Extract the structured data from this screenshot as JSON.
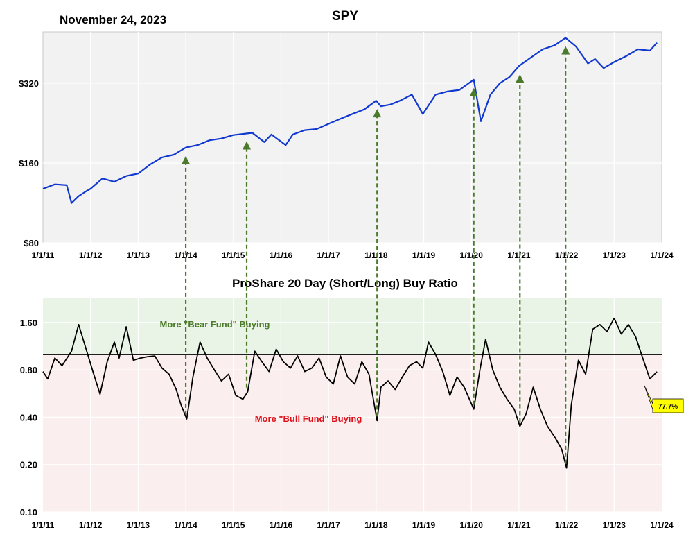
{
  "header": {
    "date": "November 24, 2023",
    "title": "SPY"
  },
  "colors": {
    "price_line": "#1038d0",
    "ratio_line": "#000000",
    "arrow": "#4a7a2a",
    "bear_zone": "#eaf4e6",
    "bull_zone": "#fbeeee",
    "price_bg": "#f2f2f2",
    "callout": "#ffff00"
  },
  "chart_data": [
    {
      "type": "line",
      "title": "SPY",
      "scale": "log",
      "ylim": [
        80,
        500
      ],
      "yticks": [
        80,
        160,
        320
      ],
      "ytick_labels": [
        "$80",
        "$160",
        "$320"
      ],
      "xticks": [
        "1/1/11",
        "1/1/12",
        "1/1/13",
        "1/1/14",
        "1/1/15",
        "1/1/16",
        "1/1/17",
        "1/1/18",
        "1/1/19",
        "1/1/20",
        "1/1/21",
        "1/1/22",
        "1/1/23",
        "1/1/24"
      ],
      "xlim": [
        2011.0,
        2024.0
      ],
      "grid": true,
      "series": [
        {
          "x": [
            2011.0,
            2011.25,
            2011.5,
            2011.6,
            2011.75,
            2011.9,
            2012.0,
            2012.25,
            2012.5,
            2012.75,
            2013.0,
            2013.25,
            2013.5,
            2013.75,
            2014.0,
            2014.25,
            2014.5,
            2014.75,
            2015.0,
            2015.4,
            2015.65,
            2015.8,
            2016.1,
            2016.25,
            2016.5,
            2016.75,
            2017.0,
            2017.25,
            2017.5,
            2017.75,
            2018.0,
            2018.1,
            2018.3,
            2018.5,
            2018.75,
            2018.98,
            2019.25,
            2019.5,
            2019.75,
            2020.05,
            2020.2,
            2020.4,
            2020.6,
            2020.8,
            2021.0,
            2021.25,
            2021.5,
            2021.75,
            2021.98,
            2022.2,
            2022.45,
            2022.6,
            2022.78,
            2023.0,
            2023.25,
            2023.5,
            2023.75,
            2023.9
          ],
          "values": [
            128,
            133,
            132,
            113,
            120,
            125,
            128,
            140,
            136,
            143,
            146,
            158,
            168,
            172,
            183,
            187,
            195,
            198,
            204,
            208,
            192,
            205,
            187,
            205,
            213,
            215,
            225,
            235,
            245,
            255,
            275,
            262,
            266,
            275,
            290,
            245,
            290,
            298,
            302,
            330,
            230,
            290,
            320,
            338,
            372,
            400,
            430,
            445,
            475,
            440,
            380,
            395,
            365,
            385,
            405,
            430,
            425,
            455
          ]
        }
      ]
    },
    {
      "type": "line",
      "title": "ProShare 20 Day (Short/Long) Buy Ratio",
      "scale": "log",
      "ylim": [
        0.1,
        2.3
      ],
      "yticks": [
        0.1,
        0.2,
        0.4,
        0.8,
        1.6
      ],
      "ytick_labels": [
        "0.10",
        "0.20",
        "0.40",
        "0.80",
        "1.60"
      ],
      "reference_line": 1.0,
      "xticks": [
        "1/1/11",
        "1/1/12",
        "1/1/13",
        "1/1/14",
        "1/1/15",
        "1/1/16",
        "1/1/17",
        "1/1/18",
        "1/1/19",
        "1/1/20",
        "1/1/21",
        "1/1/22",
        "1/1/23",
        "1/1/24"
      ],
      "xlim": [
        2011.0,
        2024.0
      ],
      "annotations": [
        "More \"Bear Fund\" Buying",
        "More \"Bull Fund\" Buying"
      ],
      "last_value_label": "77.7%",
      "series": [
        {
          "x": [
            2011.0,
            2011.1,
            2011.25,
            2011.4,
            2011.6,
            2011.75,
            2011.9,
            2012.05,
            2012.2,
            2012.35,
            2012.5,
            2012.6,
            2012.75,
            2012.9,
            2013.05,
            2013.2,
            2013.35,
            2013.5,
            2013.65,
            2013.8,
            2013.9,
            2014.02,
            2014.15,
            2014.3,
            2014.45,
            2014.6,
            2014.75,
            2014.9,
            2015.05,
            2015.2,
            2015.3,
            2015.45,
            2015.6,
            2015.75,
            2015.9,
            2016.05,
            2016.2,
            2016.35,
            2016.5,
            2016.65,
            2016.8,
            2016.95,
            2017.1,
            2017.25,
            2017.4,
            2017.55,
            2017.7,
            2017.85,
            2018.02,
            2018.1,
            2018.25,
            2018.4,
            2018.55,
            2018.7,
            2018.85,
            2018.98,
            2019.1,
            2019.25,
            2019.4,
            2019.55,
            2019.7,
            2019.85,
            2020.05,
            2020.18,
            2020.3,
            2020.45,
            2020.6,
            2020.75,
            2020.9,
            2021.02,
            2021.15,
            2021.3,
            2021.45,
            2021.6,
            2021.75,
            2021.9,
            2022.0,
            2022.1,
            2022.25,
            2022.4,
            2022.55,
            2022.7,
            2022.85,
            2023.0,
            2023.15,
            2023.3,
            2023.45,
            2023.6,
            2023.75,
            2023.9
          ],
          "values": [
            0.78,
            0.7,
            0.95,
            0.85,
            1.05,
            1.55,
            1.1,
            0.78,
            0.56,
            0.9,
            1.2,
            0.95,
            1.5,
            0.92,
            0.95,
            0.97,
            0.98,
            0.82,
            0.75,
            0.6,
            0.48,
            0.39,
            0.72,
            1.2,
            0.95,
            0.8,
            0.68,
            0.75,
            0.55,
            0.52,
            0.58,
            1.05,
            0.9,
            0.78,
            1.08,
            0.9,
            0.82,
            0.98,
            0.78,
            0.82,
            0.95,
            0.72,
            0.65,
            0.98,
            0.72,
            0.65,
            0.9,
            0.75,
            0.38,
            0.62,
            0.68,
            0.6,
            0.72,
            0.85,
            0.9,
            0.82,
            1.2,
            1.0,
            0.78,
            0.55,
            0.72,
            0.62,
            0.45,
            0.8,
            1.25,
            0.8,
            0.62,
            0.52,
            0.45,
            0.35,
            0.42,
            0.62,
            0.45,
            0.35,
            0.3,
            0.25,
            0.19,
            0.48,
            0.92,
            0.75,
            1.45,
            1.55,
            1.4,
            1.7,
            1.35,
            1.55,
            1.3,
            0.95,
            0.7,
            0.777
          ]
        }
      ]
    }
  ]
}
